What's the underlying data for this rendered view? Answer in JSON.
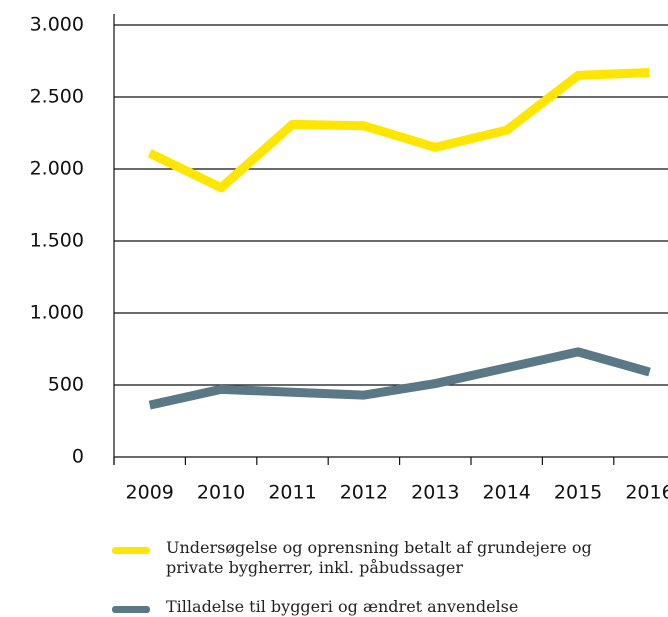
{
  "chart_data": {
    "type": "line",
    "categories": [
      "2009",
      "2010",
      "2011",
      "2012",
      "2013",
      "2014",
      "2015",
      "2016"
    ],
    "series": [
      {
        "name": "Undersøgelse og oprensning betalt af grundejere og private bygherrer, inkl. påbudssager",
        "color": "#ffe600",
        "values": [
          2110,
          1870,
          2310,
          2300,
          2150,
          2270,
          2650,
          2670
        ]
      },
      {
        "name": "Tilladelse til byggeri og ændret anvendelse",
        "color": "#5b7886",
        "values": [
          360,
          470,
          450,
          430,
          510,
          620,
          730,
          590
        ]
      }
    ],
    "ylim": [
      0,
      3000
    ],
    "yticks": [
      0,
      500,
      {
        "value": 1000,
        "label": "1.000"
      },
      {
        "value": 1500,
        "label": "1.500"
      },
      {
        "value": 2000,
        "label": "2.000"
      },
      {
        "value": 2500,
        "label": "2.500"
      },
      {
        "value": 3000,
        "label": "3.000"
      }
    ],
    "grid": true
  }
}
